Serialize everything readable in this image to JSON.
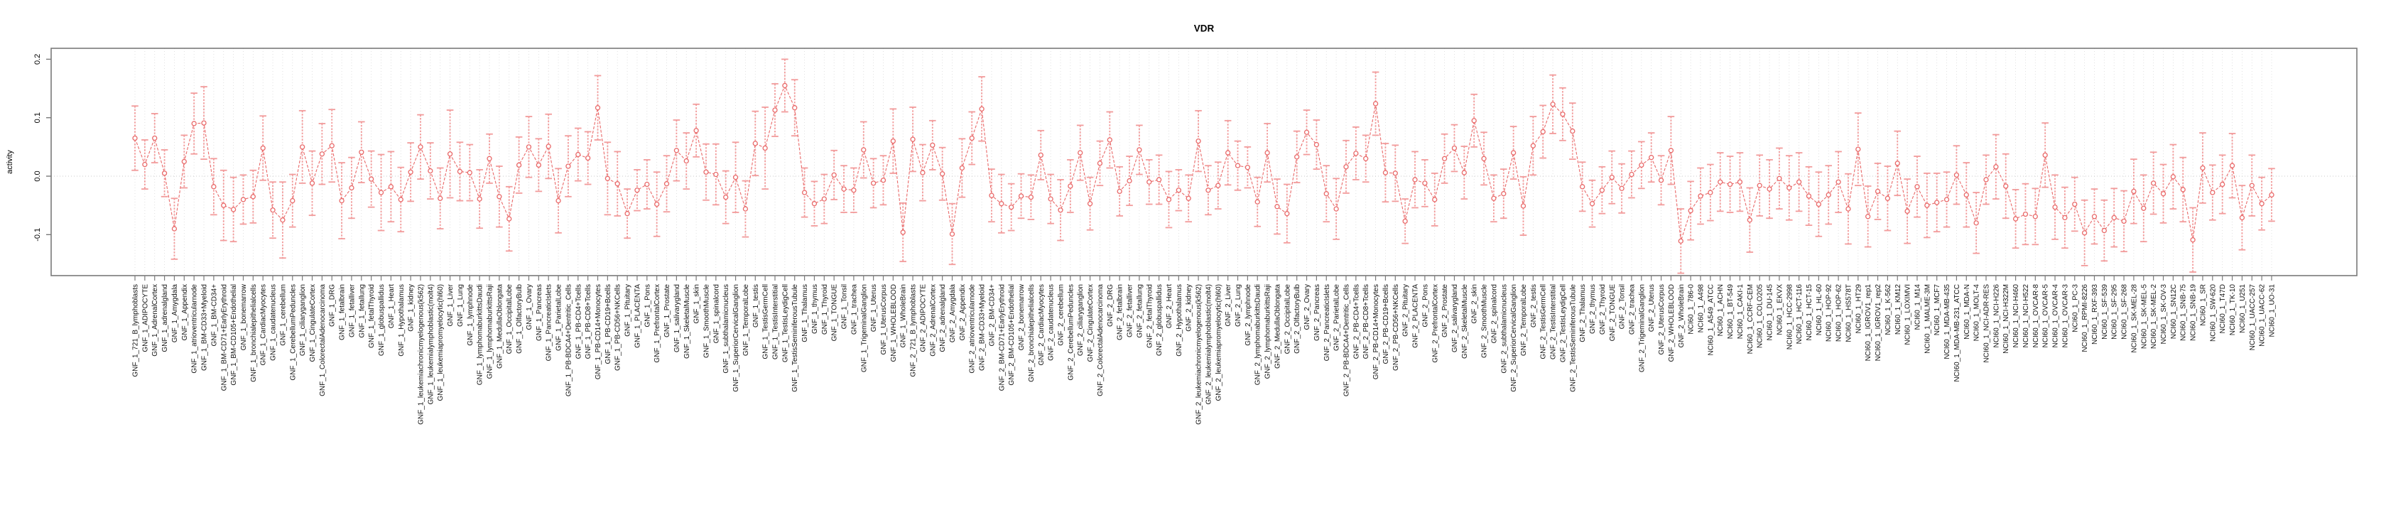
{
  "page": {
    "title": "VDR"
  },
  "chart_data": {
    "type": "line",
    "subtype": "points-with-error-bars",
    "title": "VDR",
    "xlabel": "",
    "ylabel": "activity",
    "ylim": [
      -0.17,
      0.219
    ],
    "yticks": [
      0.2,
      0.1,
      0.0,
      -0.1
    ],
    "ytick_labels": [
      "0.2",
      "0.1",
      "0.0",
      "-0.1"
    ],
    "grid": {
      "vertical_dotted_per_category": true,
      "horizontal_dotted_zero_line": true
    },
    "legend": "none",
    "point_style": "open-circle",
    "series_color": "#e96a6a",
    "errorbar_color": "#f29b9b",
    "axis_color": "#7a7a7a",
    "grid_color": "#d9d9d9",
    "categories": [
      "GNF_1_721_B_lymphoblasts",
      "GNF_1_ADIPOCYTE",
      "GNF_1_AdrenalCortex",
      "GNF_1_adrenalgland",
      "GNF_1_Amygdala",
      "GNF_1_Appendix",
      "GNF_1_atrioventricularnode",
      "GNF_1_BM-CD33+Myeloid",
      "GNF_1_BM-CD34+",
      "GNF_1_BM-CD71+EarlyErythroid",
      "GNF_1_BM-CD105+Endothelial",
      "GNF_1_bonemarrow",
      "GNF_1_bronchialepithelialcells",
      "GNF_1_CardiacMyocytes",
      "GNF_1_caudatenucleus",
      "GNF_1_cerebellum",
      "GNF_1_CerebellumPeduncles",
      "GNF_1_ciliaryganglion",
      "GNF_1_CingulateCortex",
      "GNF_1_ColorectalAdenocarcinoma",
      "GNF_1_DRG",
      "GNF_1_fetalbrain",
      "GNF_1_fetalliver",
      "GNF_1_fetallung",
      "GNF_1_fetalThyroid",
      "GNF_1_globuspallidus",
      "GNF_1_Heart",
      "GNF_1_Hypothalamus",
      "GNF_1_kidney",
      "GNF_1_leukemiachronicmyelogenous(k562)",
      "GNF_1_leukemialymphoblastic(molt4)",
      "GNF_1_leukemiapromyelocytic(hl60)",
      "GNF_1_Liver",
      "GNF_1_Lung",
      "GNF_1_lymphnode",
      "GNF_1_lymphomaburkittsDaudi",
      "GNF_1_lymphomaburkittsRaji",
      "GNF_1_MedullaOblongata",
      "GNF_1_OccipitalLobe",
      "GNF_1_OlfactoryBulb",
      "GNF_1_Ovary",
      "GNF_1_Pancreas",
      "GNF_1_PancreaticIslets",
      "GNF_1_ParietalLobe",
      "GNF_1_PB-BDCA4+Dentritic_Cells",
      "GNF_1_PB-CD4+Tcells",
      "GNF_1_PB-CD8+Tcells",
      "GNF_1_PB-CD14+Monocytes",
      "GNF_1_PB-CD19+Bcells",
      "GNF_1_PB-CD56+NKCells",
      "GNF_1_Pituitary",
      "GNF_1_PLACENTA",
      "GNF_1_Pons",
      "GNF_1_PrefrontalCortex",
      "GNF_1_Prostate",
      "GNF_1_salivarygland",
      "GNF_1_SkeletalMuscle",
      "GNF_1_skin",
      "GNF_1_SmoothMuscle",
      "GNF_1_spinalcord",
      "GNF_1_subthalamicnucleus",
      "GNF_1_SuperiorCervicalGanglion",
      "GNF_1_TemporalLobe",
      "GNF_1_testis",
      "GNF_1_TestisGermCell",
      "GNF_1_TestisInterstitial",
      "GNF_1_TestisLeydigCell",
      "GNF_1_TestisSeminiferousTubule",
      "GNF_1_Thalamus",
      "GNF_1_thymus",
      "GNF_1_Thyroid",
      "GNF_1_TONGUE",
      "GNF_1_Tonsil",
      "GNF_1_trachea",
      "GNF_1_TrigeminalGanglion",
      "GNF_1_Uterus",
      "GNF_1_UterusCorpus",
      "GNF_1_WHOLEBLOOD",
      "GNF_1_WholeBrain",
      "GNF_2_721_B_lymphoblasts",
      "GNF_2_ADIPOCYTE",
      "GNF_2_AdrenalCortex",
      "GNF_2_adrenalgland",
      "GNF_2_Amygdala",
      "GNF_2_Appendix",
      "GNF_2_atrioventricularnode",
      "GNF_2_BM-CD33+Myeloid",
      "GNF_2_BM-CD34+",
      "GNF_2_BM-CD71+EarlyErythroid",
      "GNF_2_BM-CD105+Endothelial",
      "GNF_2_bonemarrow",
      "GNF_2_bronchialepithelialcells",
      "GNF_2_CardiacMyocytes",
      "GNF_2_caudatenucleus",
      "GNF_2_cerebellum",
      "GNF_2_CerebellumPeduncles",
      "GNF_2_ciliaryganglion",
      "GNF_2_CingulateCortex",
      "GNF_2_ColorectalAdenocarcinoma",
      "GNF_2_DRG",
      "GNF_2_fetalbrain",
      "GNF_2_fetalliver",
      "GNF_2_fetallung",
      "GNF_2_fetalThyroid",
      "GNF_2_globuspallidus",
      "GNF_2_Heart",
      "GNF_2_Hypothalamus",
      "GNF_2_kidney",
      "GNF_2_leukemiachronicmyelogenous(k562)",
      "GNF_2_leukemialymphoblastic(molt4)",
      "GNF_2_leukemiapromyelocytic(hl60)",
      "GNF_2_Liver",
      "GNF_2_Lung",
      "GNF_2_lymphnode",
      "GNF_2_lymphomaburkittsDaudi",
      "GNF_2_lymphomaburkittsRaji",
      "GNF_2_MedullaOblongata",
      "GNF_2_OccipitalLobe",
      "GNF_2_OlfactoryBulb",
      "GNF_2_Ovary",
      "GNF_2_Pancreas",
      "GNF_2_PancreaticIslets",
      "GNF_2_ParietalLobe",
      "GNF_2_PB-BDCA4+Dentritic_Cells",
      "GNF_2_PB-CD4+Tcells",
      "GNF_2_PB-CD8+Tcells",
      "GNF_2_PB-CD14+Monocytes",
      "GNF_2_PB-CD19+Bcells",
      "GNF_2_PB-CD56+NKCells",
      "GNF_2_Pituitary",
      "GNF_2_PLACENTA",
      "GNF_2_Pons",
      "GNF_2_PrefrontalCortex",
      "GNF_2_Prostate",
      "GNF_2_salivarygland",
      "GNF_2_SkeletalMuscle",
      "GNF_2_skin",
      "GNF_2_SmoothMuscle",
      "GNF_2_spinalcord",
      "GNF_2_subthalamicnucleus",
      "GNF_2_SuperiorCervicalGanglion",
      "GNF_2_TemporalLobe",
      "GNF_2_testis",
      "GNF_2_TestisGermCell",
      "GNF_2_TestisInterstitial",
      "GNF_2_TestisLeydigCell",
      "GNF_2_TestisSeminiferousTubule",
      "GNF_2_Thalamus",
      "GNF_2_thymus",
      "GNF_2_Thyroid",
      "GNF_2_TONGUE",
      "GNF_2_Tonsil",
      "GNF_2_trachea",
      "GNF_2_TrigeminalGanglion",
      "GNF_2_Uterus",
      "GNF_2_UterusCorpus",
      "GNF_2_WHOLEBLOOD",
      "GNF_2_WholeBrain",
      "NCI60_1_786-0",
      "NCI60_1_A498",
      "NCI60_1_A549_ATCC",
      "NCI60_1_ACHN",
      "NCI60_1_BT-549",
      "NCI60_1_CAKI-1",
      "NCI60_1_CCRF-CEM",
      "NCI60_1_COLO205",
      "NCI60_1_DU-145",
      "NCI60_1_EKVX",
      "NCI60_1_HCC-2998",
      "NCI60_1_HCT-116",
      "NCI60_1_HCT-15",
      "NCI60_1_HL-60",
      "NCI60_1_HOP-92",
      "NCI60_1_HOP-62",
      "NCI60_1_HS578T",
      "NCI60_1_HT29",
      "NCI60_1_IGROV1_rep1",
      "NCI60_1_IGROV1_rep2",
      "NCI60_1_K-562",
      "NCI60_1_KM12",
      "NCI60_1_LOXIMVI",
      "NCI60_1_M14",
      "NCI60_1_MALME-3M",
      "NCI60_1_MCF7",
      "NCI60_1_MDA-MB-435",
      "NCI60_1_MDA-MB-231_ATCC",
      "NCI60_1_MDA-N",
      "NCI60_1_MOLT-4",
      "NCI60_1_NCI-ADR-RES",
      "NCI60_1_NCI-H226",
      "NCI60_1_NCI-H322M",
      "NCI60_1_NCI-H460",
      "NCI60_1_NCI-H522",
      "NCI60_1_OVCAR-8",
      "NCI60_1_OVCAR-5",
      "NCI60_1_OVCAR-4",
      "NCI60_1_OVCAR-3",
      "NCI60_1_PC-3",
      "NCI60_1_RPMI-8226",
      "NCI60_1_RXF-393",
      "NCI60_1_SF-539",
      "NCI60_1_SF-295",
      "NCI60_1_SF-268",
      "NCI60_1_SK-MEL-28",
      "NCI60_1_SK-MEL-5",
      "NCI60_1_SK-MEL-2",
      "NCI60_1_SK-OV-3",
      "NCI60_1_SN12C",
      "NCI60_1_SNB-75",
      "NCI60_1_SNB-19",
      "NCI60_1_SR",
      "NCI60_1_SW-620",
      "NCI60_1_T47D",
      "NCI60_1_TK-10",
      "NCI60_1_U251",
      "NCI60_1_UACC-257",
      "NCI60_1_UACC-62",
      "NCI60_1_UO-31"
    ],
    "values": [
      0.065,
      0.02,
      0.065,
      0.005,
      -0.09,
      0.025,
      0.09,
      0.091,
      -0.018,
      -0.05,
      -0.057,
      -0.04,
      -0.035,
      0.048,
      -0.058,
      -0.075,
      -0.042,
      0.05,
      -0.012,
      0.038,
      0.052,
      -0.042,
      -0.02,
      0.041,
      -0.005,
      -0.028,
      -0.018,
      -0.04,
      0.007,
      0.05,
      0.009,
      -0.038,
      0.038,
      0.008,
      0.006,
      -0.039,
      0.03,
      -0.035,
      -0.073,
      0.019,
      0.05,
      0.019,
      0.051,
      -0.042,
      0.017,
      0.037,
      0.031,
      0.117,
      -0.004,
      -0.013,
      -0.064,
      -0.024,
      -0.014,
      -0.048,
      -0.013,
      0.044,
      0.026,
      0.078,
      0.007,
      0.003,
      -0.036,
      -0.002,
      -0.056,
      0.056,
      0.048,
      0.113,
      0.155,
      0.117,
      -0.028,
      -0.047,
      -0.039,
      0.002,
      -0.022,
      -0.024,
      0.045,
      -0.012,
      -0.007,
      0.06,
      -0.096,
      0.063,
      0.006,
      0.053,
      0.004,
      -0.099,
      0.014,
      0.065,
      0.115,
      -0.033,
      -0.047,
      -0.053,
      -0.034,
      -0.036,
      0.036,
      -0.039,
      -0.058,
      -0.017,
      0.04,
      -0.047,
      0.022,
      0.062,
      -0.026,
      -0.008,
      0.045,
      -0.01,
      -0.006,
      -0.04,
      -0.024,
      -0.038,
      0.06,
      -0.024,
      -0.016,
      0.04,
      0.018,
      0.015,
      -0.044,
      0.04,
      -0.052,
      -0.064,
      0.033,
      0.075,
      0.054,
      -0.03,
      -0.056,
      0.016,
      0.039,
      0.03,
      0.124,
      0.006,
      0.005,
      -0.077,
      -0.006,
      -0.012,
      -0.04,
      0.03,
      0.048,
      0.006,
      0.095,
      0.03,
      -0.038,
      -0.03,
      0.04,
      -0.051,
      0.052,
      0.076,
      0.123,
      0.106,
      0.077,
      -0.018,
      -0.047,
      -0.024,
      -0.002,
      -0.021,
      0.003,
      0.019,
      0.032,
      -0.007,
      0.044,
      -0.111,
      -0.059,
      -0.034,
      -0.028,
      -0.01,
      -0.014,
      -0.01,
      -0.075,
      -0.016,
      -0.022,
      -0.004,
      -0.02,
      -0.01,
      -0.034,
      -0.048,
      -0.032,
      -0.01,
      -0.056,
      0.046,
      -0.069,
      -0.026,
      -0.038,
      0.022,
      -0.06,
      -0.018,
      -0.05,
      -0.045,
      -0.04,
      0.002,
      -0.032,
      -0.08,
      -0.006,
      0.016,
      -0.017,
      -0.073,
      -0.065,
      -0.069,
      0.036,
      -0.053,
      -0.071,
      -0.048,
      -0.097,
      -0.069,
      -0.093,
      -0.071,
      -0.077,
      -0.026,
      -0.055,
      -0.012,
      -0.03,
      -0.001,
      -0.023,
      -0.109,
      0.014,
      -0.028,
      -0.014,
      0.018,
      -0.071,
      -0.016,
      -0.047,
      -0.032
    ],
    "error": [
      0.055,
      0.042,
      0.042,
      0.04,
      0.052,
      0.045,
      0.052,
      0.062,
      0.048,
      0.06,
      0.055,
      0.042,
      0.045,
      0.055,
      0.048,
      0.065,
      0.045,
      0.062,
      0.055,
      0.052,
      0.062,
      0.065,
      0.052,
      0.052,
      0.048,
      0.065,
      0.06,
      0.055,
      0.05,
      0.055,
      0.048,
      0.052,
      0.075,
      0.05,
      0.048,
      0.05,
      0.042,
      0.052,
      0.055,
      0.048,
      0.052,
      0.045,
      0.055,
      0.055,
      0.052,
      0.045,
      0.045,
      0.055,
      0.062,
      0.055,
      0.042,
      0.035,
      0.042,
      0.055,
      0.048,
      0.052,
      0.048,
      0.045,
      0.048,
      0.052,
      0.045,
      0.06,
      0.048,
      0.055,
      0.07,
      0.045,
      0.045,
      0.048,
      0.042,
      0.038,
      0.042,
      0.042,
      0.04,
      0.038,
      0.048,
      0.042,
      0.042,
      0.055,
      0.05,
      0.055,
      0.048,
      0.042,
      0.045,
      0.052,
      0.05,
      0.045,
      0.055,
      0.045,
      0.05,
      0.04,
      0.038,
      0.038,
      0.042,
      0.042,
      0.052,
      0.045,
      0.047,
      0.045,
      0.038,
      0.048,
      0.042,
      0.042,
      0.042,
      0.038,
      0.042,
      0.048,
      0.035,
      0.04,
      0.052,
      0.042,
      0.04,
      0.055,
      0.042,
      0.035,
      0.042,
      0.05,
      0.047,
      0.05,
      0.044,
      0.038,
      0.042,
      0.048,
      0.052,
      0.045,
      0.045,
      0.04,
      0.054,
      0.05,
      0.048,
      0.038,
      0.048,
      0.04,
      0.045,
      0.042,
      0.04,
      0.045,
      0.045,
      0.045,
      0.04,
      0.042,
      0.045,
      0.05,
      0.05,
      0.045,
      0.05,
      0.045,
      0.048,
      0.042,
      0.04,
      0.04,
      0.045,
      0.042,
      0.04,
      0.04,
      0.042,
      0.042,
      0.058,
      0.055,
      0.05,
      0.048,
      0.048,
      0.05,
      0.048,
      0.05,
      0.055,
      0.052,
      0.05,
      0.052,
      0.055,
      0.05,
      0.05,
      0.055,
      0.05,
      0.052,
      0.06,
      0.062,
      0.052,
      0.048,
      0.055,
      0.055,
      0.055,
      0.052,
      0.055,
      0.05,
      0.047,
      0.05,
      0.055,
      0.052,
      0.042,
      0.055,
      0.055,
      0.05,
      0.052,
      0.048,
      0.055,
      0.055,
      0.052,
      0.046,
      0.056,
      0.047,
      0.052,
      0.05,
      0.052,
      0.055,
      0.057,
      0.053,
      0.05,
      0.055,
      0.055,
      0.055,
      0.06,
      0.047,
      0.05,
      0.055,
      0.055,
      0.052,
      0.045,
      0.045
    ]
  }
}
